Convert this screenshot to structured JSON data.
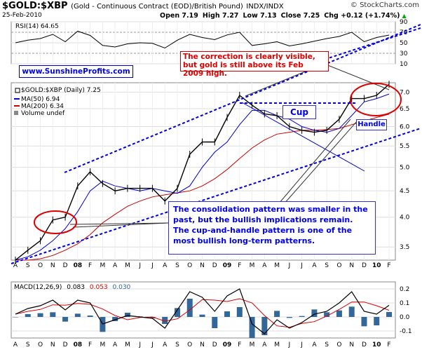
{
  "header": {
    "symbol": "$GOLD:$XBP",
    "subtitle": "(Gold - Continuous Contract (EOD)/British Pound)",
    "exchange": "INDX/INDX",
    "brand": "© StockCharts.com",
    "date": "25-Feb-2010",
    "open": "Open 7.19",
    "high": "High 7.27",
    "low": "Low 7.13",
    "close": "Close 7.25",
    "chg": "Chg +0.12 (+1.74%)",
    "chg_arrow": "▲"
  },
  "rsi_panel": {
    "label": "RSI(14) 64.65",
    "ticks": [
      "90",
      "70",
      "50",
      "30",
      "10"
    ]
  },
  "price_panel": {
    "label": "$GOLD:$XBP (Daily) 7.25",
    "ma50": "MA(50) 6.94",
    "ma200": "MA(200) 6.34",
    "volume": "Volume undef",
    "ticks": [
      "7.0",
      "6.5",
      "6.0",
      "5.5",
      "5.0",
      "4.5",
      "4.0",
      "3.5"
    ]
  },
  "macd_panel": {
    "label": "MACD(12,26,9)",
    "v1": "0.083",
    "v2": "0.053",
    "v3": "0.030",
    "ticks": [
      "0.2",
      "0.1",
      "0.0",
      "-0.1"
    ]
  },
  "time_axis": [
    "A",
    "S",
    "O",
    "N",
    "D",
    "08",
    "F",
    "M",
    "A",
    "M",
    "J",
    "J",
    "A",
    "S",
    "O",
    "N",
    "D",
    "09",
    "F",
    "M",
    "A",
    "M",
    "J",
    "J",
    "A",
    "S",
    "O",
    "N",
    "D",
    "10",
    "F"
  ],
  "annotations": {
    "rsi_callout": "The correction is clearly visible, but gold is still above its Feb 2009 high.",
    "site": "www.SunshineProfits.com",
    "cup": "Cup",
    "handle": "Handle",
    "main": "The consolidation pattern was smaller in the past, but the bullish implications remain. The cup-and-handle pattern is one of the most bullish long-term patterns."
  },
  "colors": {
    "price": "#000000",
    "ma50": "#0000cc",
    "ma200": "#cc0000",
    "trend": "#0000dd",
    "circle": "#dd0000",
    "macd": "#000000",
    "signal": "#dd0000",
    "hist": "#336699"
  },
  "chart_data": {
    "type": "line",
    "x": [
      "2007-08",
      "2007-09",
      "2007-10",
      "2007-11",
      "2007-12",
      "2008-01",
      "2008-02",
      "2008-03",
      "2008-04",
      "2008-05",
      "2008-06",
      "2008-07",
      "2008-08",
      "2008-09",
      "2008-10",
      "2008-11",
      "2008-12",
      "2009-01",
      "2009-02",
      "2009-03",
      "2009-04",
      "2009-05",
      "2009-06",
      "2009-07",
      "2009-08",
      "2009-09",
      "2009-10",
      "2009-11",
      "2009-12",
      "2010-01",
      "2010-02"
    ],
    "series": [
      {
        "name": "$GOLD:$XBP",
        "values": [
          3.3,
          3.45,
          3.6,
          3.95,
          4.0,
          4.6,
          4.9,
          4.65,
          4.5,
          4.55,
          4.55,
          4.55,
          4.3,
          4.55,
          5.3,
          5.6,
          5.6,
          6.25,
          6.9,
          6.6,
          6.35,
          6.3,
          6.0,
          5.9,
          5.85,
          5.9,
          6.2,
          6.8,
          6.8,
          6.9,
          7.25
        ]
      },
      {
        "name": "MA(50)",
        "values": [
          3.3,
          3.35,
          3.45,
          3.6,
          3.8,
          4.1,
          4.5,
          4.7,
          4.6,
          4.55,
          4.5,
          4.55,
          4.5,
          4.45,
          4.6,
          5.0,
          5.35,
          5.6,
          6.05,
          6.45,
          6.45,
          6.3,
          6.2,
          6.0,
          5.9,
          5.85,
          5.95,
          6.3,
          6.7,
          6.8,
          6.94
        ]
      },
      {
        "name": "MA(200)",
        "values": [
          3.3,
          3.3,
          3.32,
          3.37,
          3.45,
          3.55,
          3.7,
          3.9,
          4.05,
          4.2,
          4.3,
          4.38,
          4.42,
          4.46,
          4.5,
          4.6,
          4.75,
          4.95,
          5.2,
          5.45,
          5.65,
          5.8,
          5.85,
          5.9,
          5.9,
          5.92,
          5.95,
          6.05,
          6.15,
          6.25,
          6.34
        ]
      },
      {
        "name": "RSI(14)",
        "values": [
          50,
          55,
          58,
          66,
          52,
          72,
          64,
          45,
          42,
          48,
          50,
          49,
          40,
          55,
          66,
          60,
          56,
          65,
          70,
          45,
          48,
          52,
          44,
          48,
          53,
          58,
          62,
          70,
          52,
          60,
          64.65
        ]
      },
      {
        "name": "MACD(12,26,9)",
        "values": [
          0.02,
          0.06,
          0.08,
          0.12,
          0.05,
          0.12,
          0.1,
          -0.05,
          -0.02,
          0.01,
          0.0,
          -0.01,
          -0.08,
          0.05,
          0.18,
          0.14,
          0.04,
          0.15,
          0.2,
          -0.05,
          -0.12,
          -0.02,
          -0.08,
          -0.04,
          0.02,
          0.04,
          0.1,
          0.18,
          0.04,
          0.02,
          0.083
        ]
      }
    ],
    "ylim": [
      3.3,
      7.3
    ],
    "yscale": "log",
    "rsi_ylim": [
      10,
      90
    ],
    "macd_ylim": [
      -0.15,
      0.25
    ],
    "grid": true
  }
}
